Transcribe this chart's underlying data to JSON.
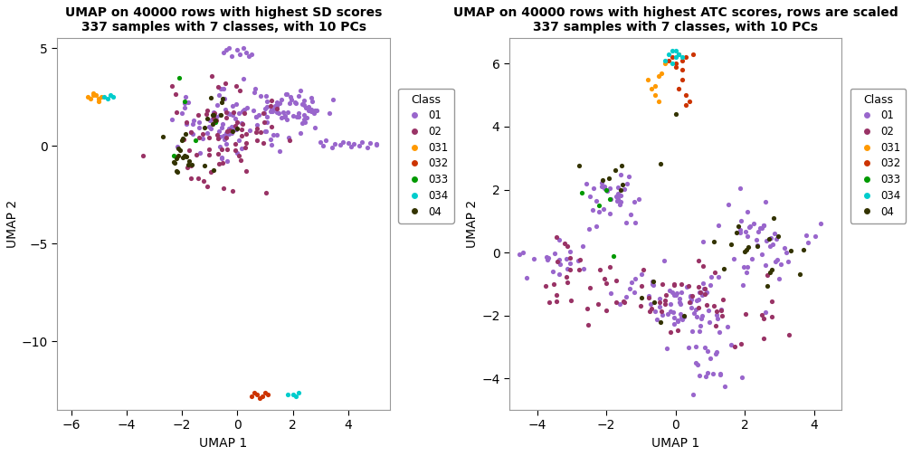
{
  "title1": "UMAP on 40000 rows with highest SD scores\n337 samples with 7 classes, with 10 PCs",
  "title2": "UMAP on 40000 rows with highest ATC scores, rows are scaled\n337 samples with 7 classes, with 10 PCs",
  "xlabel": "UMAP 1",
  "ylabel": "UMAP 2",
  "classes": [
    "01",
    "02",
    "031",
    "032",
    "033",
    "034",
    "04"
  ],
  "colors": {
    "01": "#9966CC",
    "02": "#993366",
    "031": "#FF9900",
    "032": "#CC3300",
    "033": "#009900",
    "034": "#00CCCC",
    "04": "#333300"
  },
  "plot1_xlim": [
    -6.5,
    5.5
  ],
  "plot1_ylim": [
    -13.5,
    5.5
  ],
  "plot1_xticks": [
    -6,
    -4,
    -2,
    0,
    2,
    4
  ],
  "plot1_yticks": [
    -10,
    -5,
    0,
    5
  ],
  "plot2_xlim": [
    -4.8,
    4.8
  ],
  "plot2_ylim": [
    -5.0,
    6.8
  ],
  "plot2_xticks": [
    -4,
    -2,
    0,
    2,
    4
  ],
  "plot2_yticks": [
    -4,
    -2,
    0,
    2,
    4,
    6
  ],
  "marker_size": 12,
  "bg_color": "#FFFFFF",
  "border_color": "#AAAAAA"
}
